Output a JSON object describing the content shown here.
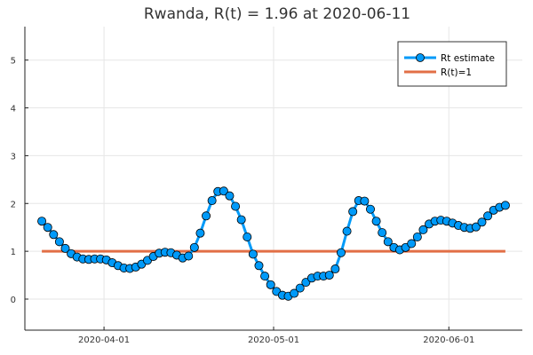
{
  "chart_data": {
    "type": "line",
    "title": "Rwanda, R(t) = 1.96 at 2020-06-11",
    "xlabel": "",
    "ylabel": "",
    "x_ticks": [
      {
        "date": "2020-04-01",
        "label": "2020-04-01"
      },
      {
        "date": "2020-05-01",
        "label": "2020-05-01"
      },
      {
        "date": "2020-06-01",
        "label": "2020-06-01"
      }
    ],
    "y_ticks": [
      0,
      1,
      2,
      3,
      4,
      5
    ],
    "xlim": [
      "2020-03-18",
      "2020-06-14"
    ],
    "ylim": [
      -0.65,
      5.7
    ],
    "grid": true,
    "legend_position": "top-right",
    "series": [
      {
        "name": "Rt estimate",
        "color": "#009af9",
        "marker": "circle",
        "x_start": "2020-03-21",
        "x_end": "2020-06-11",
        "values": [
          1.63,
          1.5,
          1.35,
          1.2,
          1.06,
          0.95,
          0.88,
          0.84,
          0.83,
          0.84,
          0.84,
          0.82,
          0.76,
          0.7,
          0.65,
          0.64,
          0.67,
          0.73,
          0.81,
          0.89,
          0.96,
          0.98,
          0.97,
          0.92,
          0.86,
          0.9,
          1.08,
          1.38,
          1.74,
          2.06,
          2.25,
          2.26,
          2.16,
          1.94,
          1.66,
          1.3,
          0.94,
          0.7,
          0.48,
          0.3,
          0.16,
          0.08,
          0.06,
          0.12,
          0.23,
          0.35,
          0.44,
          0.48,
          0.48,
          0.5,
          0.63,
          0.97,
          1.42,
          1.83,
          2.06,
          2.05,
          1.88,
          1.63,
          1.39,
          1.2,
          1.08,
          1.03,
          1.08,
          1.16,
          1.3,
          1.45,
          1.57,
          1.63,
          1.65,
          1.63,
          1.59,
          1.54,
          1.5,
          1.48,
          1.51,
          1.61,
          1.74,
          1.86,
          1.92,
          1.96
        ]
      },
      {
        "name": "R(t)=1",
        "color": "#e26f46",
        "x_start": "2020-03-21",
        "x_end": "2020-06-11",
        "values": [
          1,
          1
        ]
      }
    ]
  }
}
